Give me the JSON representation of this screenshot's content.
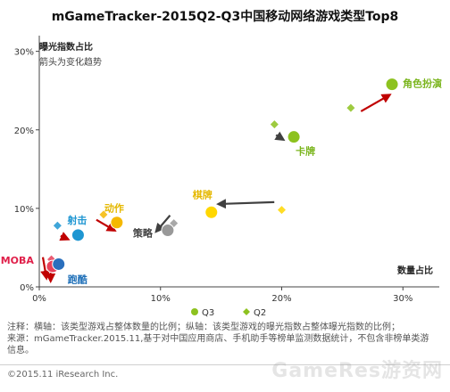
{
  "chart_data": {
    "type": "scatter",
    "title": "mGameTracker-2015Q2-Q3中国移动网络游戏类型Top8",
    "ylabel": "曝光指数占比",
    "subtitle": "箭头为变化趋势",
    "xlabel": "数量占比",
    "xlim": [
      0,
      33
    ],
    "ylim": [
      0,
      32
    ],
    "x_ticks": [
      {
        "v": 0,
        "label": "0%"
      },
      {
        "v": 10,
        "label": "10%"
      },
      {
        "v": 20,
        "label": "20%"
      },
      {
        "v": 30,
        "label": "30%"
      }
    ],
    "y_ticks": [
      {
        "v": 0,
        "label": "0%"
      },
      {
        "v": 10,
        "label": "10%"
      },
      {
        "v": 20,
        "label": "20%"
      },
      {
        "v": 30,
        "label": "30%"
      }
    ],
    "legend": [
      {
        "name": "Q3",
        "color": "#8dc21f",
        "marker": "circle"
      },
      {
        "name": "Q2",
        "color": "#8dc21f",
        "marker": "diamond"
      }
    ],
    "points": [
      {
        "label": "角色扮演",
        "label_color": "#7ab51d",
        "q2": [
          25.7,
          22.8
        ],
        "q3": [
          29.1,
          25.8
        ],
        "color": "#8dc21f",
        "arrow_color": "#c00000"
      },
      {
        "label": "卡牌",
        "label_color": "#7ab51d",
        "q2": [
          19.4,
          20.7
        ],
        "q3": [
          21.0,
          19.1
        ],
        "color": "#8dc21f",
        "arrow_color": "#404040"
      },
      {
        "label": "棋牌",
        "label_color": "#e5b800",
        "q2": [
          20.0,
          9.8
        ],
        "q3": [
          14.2,
          9.5
        ],
        "color": "#ffd700",
        "arrow_color": "#404040"
      },
      {
        "label": "策略",
        "label_color": "#404040",
        "q2": [
          11.1,
          8.1
        ],
        "q3": [
          10.6,
          7.2
        ],
        "color": "#999999",
        "arrow_color": "#404040"
      },
      {
        "label": "动作",
        "label_color": "#e5b800",
        "q2": [
          5.3,
          9.2
        ],
        "q3": [
          6.4,
          8.2
        ],
        "color": "#f5b800",
        "arrow_color": "#c00000"
      },
      {
        "label": "射击",
        "label_color": "#1e96d2",
        "q2": [
          1.5,
          7.8
        ],
        "q3": [
          3.2,
          6.6
        ],
        "color": "#1e96d2",
        "arrow_color": "#c00000"
      },
      {
        "label": "MOBA",
        "label_color": "#e0204a",
        "q2": [
          1.0,
          3.5
        ],
        "q3": [
          1.1,
          2.6
        ],
        "color": "#e8405a",
        "arrow_color": "#c00000"
      },
      {
        "label": "跑酷",
        "label_color": "#1e6fb8",
        "q2": [
          1.6,
          3.0
        ],
        "q3": [
          1.6,
          2.9
        ],
        "color": "#2a6fbd",
        "arrow_color": "#c00000"
      }
    ]
  },
  "footnote": {
    "line1": "注释：横轴：该类型游戏占整体数量的比例；纵轴：该类型游戏的曝光指数占整体曝光指数的比例；",
    "line2": "来源：mGameTracker.2015.11,基于对中国应用商店、手机助手等榜单监测数据统计，不包含非榜单类游",
    "line3": "信息。"
  },
  "copyright": "©2015.11 iResearch Inc.",
  "watermark": "GameRes游资网"
}
